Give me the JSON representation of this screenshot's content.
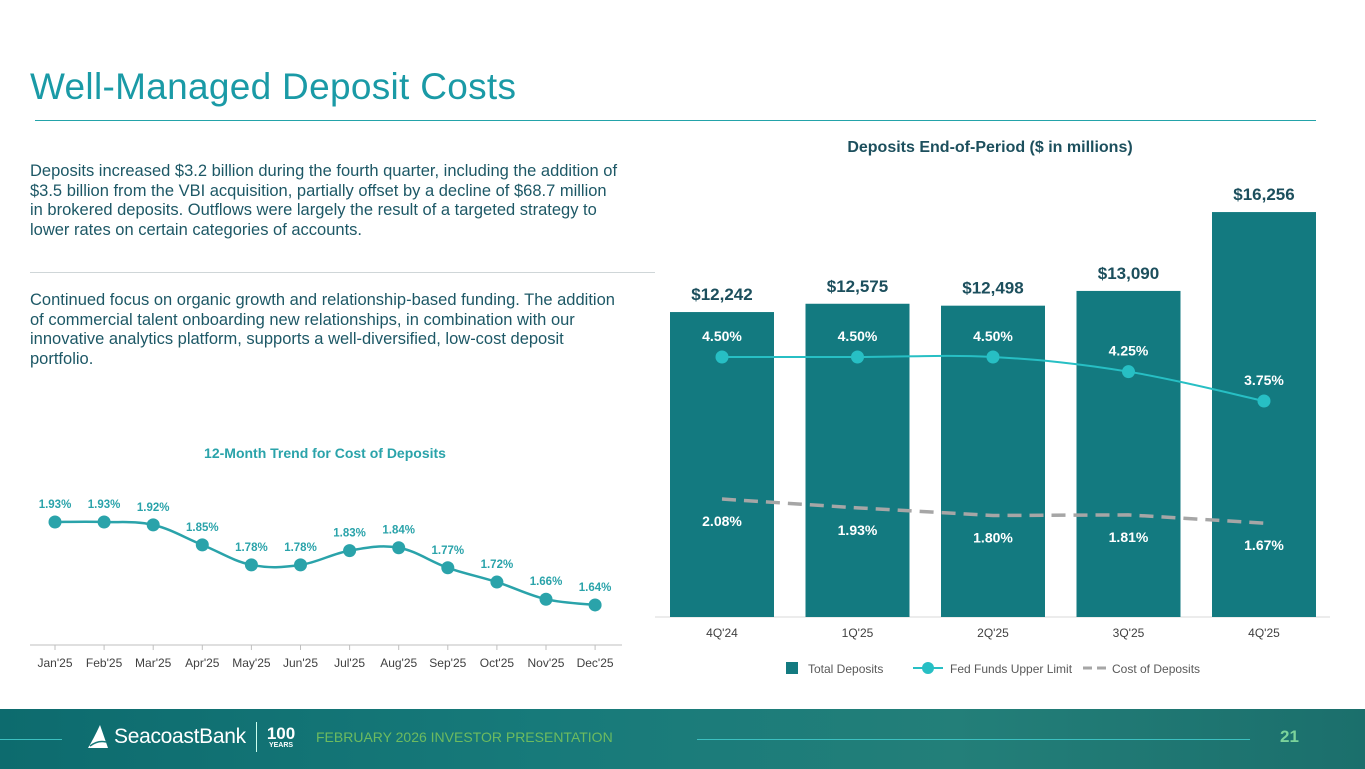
{
  "header": {
    "title": "Well-Managed Deposit Costs"
  },
  "body": {
    "paragraph_1": "Deposits increased $3.2 billion during the fourth quarter, including the addition of $3.5 billion from the VBI acquisition, partially offset by a decline of $68.7 million in brokered deposits. Outflows were largely the result of a targeted strategy to lower rates on certain categories of accounts.",
    "paragraph_2": "Continued focus on organic growth and relationship-based funding. The addition of commercial talent onboarding new relationships, in combination with our innovative analytics platform, supports a well-diversified, low-cost deposit portfolio."
  },
  "chart_data": [
    {
      "type": "line",
      "title": "12-Month Trend for Cost of Deposits",
      "categories": [
        "Jan'25",
        "Feb'25",
        "Mar'25",
        "Apr'25",
        "May'25",
        "Jun'25",
        "Jul'25",
        "Aug'25",
        "Sep'25",
        "Oct'25",
        "Nov'25",
        "Dec'25"
      ],
      "values": [
        1.93,
        1.93,
        1.92,
        1.85,
        1.78,
        1.78,
        1.83,
        1.84,
        1.77,
        1.72,
        1.66,
        1.64
      ],
      "labels": [
        "1.93%",
        "1.93%",
        "1.92%",
        "1.85%",
        "1.78%",
        "1.78%",
        "1.83%",
        "1.84%",
        "1.77%",
        "1.72%",
        "1.66%",
        "1.64%"
      ],
      "color": "#2aa3aa",
      "grid": false
    },
    {
      "type": "bar",
      "title": "Deposits End-of-Period ($ in millions)",
      "categories": [
        "4Q'24",
        "1Q'25",
        "2Q'25",
        "3Q'25",
        "4Q'25"
      ],
      "series": [
        {
          "name": "Total Deposits",
          "type": "bar",
          "values": [
            12242,
            12575,
            12498,
            13090,
            16256
          ],
          "labels": [
            "$12,242",
            "$12,575",
            "$12,498",
            "$13,090",
            "$16,256"
          ],
          "color": "#137a80"
        },
        {
          "name": "Fed Funds Upper Limit",
          "type": "line",
          "values": [
            4.5,
            4.5,
            4.5,
            4.25,
            3.75
          ],
          "labels": [
            "4.50%",
            "4.50%",
            "4.50%",
            "4.25%",
            "3.75%"
          ],
          "color": "#27bfc4"
        },
        {
          "name": "Cost of Deposits",
          "type": "dashed-line",
          "values": [
            2.08,
            1.93,
            1.8,
            1.81,
            1.67
          ],
          "labels": [
            "2.08%",
            "1.93%",
            "1.80%",
            "1.81%",
            "1.67%"
          ],
          "color": "#a6a6a6"
        }
      ],
      "legend": "bottom",
      "grid": false
    }
  ],
  "footer": {
    "brand": "SeacoastBank",
    "anniversary_number": "100",
    "anniversary_word": "YEARS",
    "presentation": "FEBRUARY 2026 INVESTOR PRESENTATION",
    "page_number": "21"
  }
}
